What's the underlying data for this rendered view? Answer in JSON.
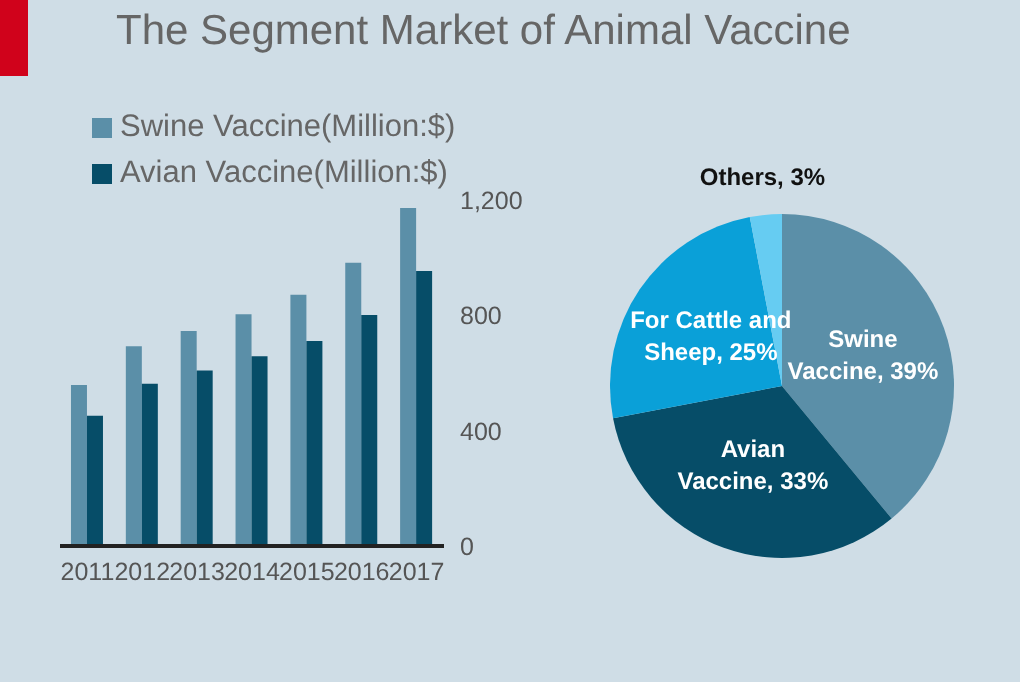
{
  "chart_data": [
    {
      "type": "bar",
      "title": "The Segment Market of Animal Vaccine",
      "categories": [
        "2011",
        "2012",
        "2013",
        "2014",
        "2015",
        "2016",
        "2017"
      ],
      "series": [
        {
          "name": "Swine Vaccine(Million:$)",
          "color": "#5b8fa8",
          "values": [
            558,
            693,
            746,
            804,
            871,
            982,
            1172
          ]
        },
        {
          "name": "Avian Vaccine(Million:$)",
          "color": "#064d68",
          "values": [
            452,
            563,
            609,
            658,
            711,
            801,
            954
          ]
        }
      ],
      "ylim": [
        0,
        1200
      ],
      "yticks": [
        0,
        400,
        800,
        {
          "value": 1200,
          "label": "1,200"
        }
      ],
      "legend": "top"
    },
    {
      "type": "pie",
      "categories": [
        "Swine Vaccine",
        "Avian Vaccine",
        "For Cattle and Sheep",
        "Others"
      ],
      "values": [
        39,
        33,
        25,
        3
      ],
      "colors": [
        "#5b8fa8",
        "#064d68",
        "#0aa0d8",
        "#66ccf2"
      ],
      "value_labels": [
        "39%",
        "33%",
        "25%",
        "3%"
      ],
      "legend": false
    }
  ]
}
